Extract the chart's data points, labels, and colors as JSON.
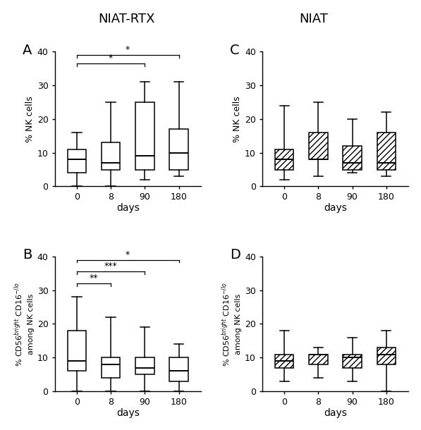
{
  "panel_A": {
    "label": "A",
    "title": "NIAT-RTX",
    "ylabel": "% NK cells",
    "xlabel": "days",
    "xticks": [
      0,
      8,
      90,
      180
    ],
    "ylim": [
      0,
      40
    ],
    "yticks": [
      0,
      10,
      20,
      30,
      40
    ],
    "boxes": [
      {
        "whislo": 0,
        "q1": 4,
        "med": 8,
        "q3": 11,
        "whishi": 16
      },
      {
        "whislo": 0,
        "q1": 5,
        "med": 7,
        "q3": 13,
        "whishi": 25
      },
      {
        "whislo": 2,
        "q1": 5,
        "med": 9,
        "q3": 25,
        "whishi": 31
      },
      {
        "whislo": 3,
        "q1": 5,
        "med": 10,
        "q3": 17,
        "whishi": 31
      }
    ],
    "sig_lines": [
      {
        "x1": 0,
        "x2": 2,
        "y": 36.5,
        "label": "*"
      },
      {
        "x1": 0,
        "x2": 3,
        "y": 39,
        "label": "*"
      }
    ],
    "hatched": false
  },
  "panel_B": {
    "label": "B",
    "title": "",
    "ylabel_line1": "% CD56",
    "ylabel_line2": "among NK cells",
    "xlabel": "days",
    "xticks": [
      0,
      8,
      90,
      180
    ],
    "ylim": [
      0,
      40
    ],
    "yticks": [
      0,
      10,
      20,
      30,
      40
    ],
    "boxes": [
      {
        "whislo": 0,
        "q1": 6,
        "med": 9,
        "q3": 18,
        "whishi": 28
      },
      {
        "whislo": 0,
        "q1": 4,
        "med": 8,
        "q3": 10,
        "whishi": 22
      },
      {
        "whislo": 0,
        "q1": 5,
        "med": 7,
        "q3": 10,
        "whishi": 19
      },
      {
        "whislo": 0,
        "q1": 3,
        "med": 6,
        "q3": 10,
        "whishi": 14
      }
    ],
    "sig_lines": [
      {
        "x1": 0,
        "x2": 1,
        "y": 32,
        "label": "**"
      },
      {
        "x1": 0,
        "x2": 2,
        "y": 35.5,
        "label": "***"
      },
      {
        "x1": 0,
        "x2": 3,
        "y": 39,
        "label": "*"
      }
    ],
    "hatched": false
  },
  "panel_C": {
    "label": "C",
    "title": "NIAT",
    "ylabel": "% NK cells",
    "xlabel": "days",
    "xticks": [
      0,
      8,
      90,
      180
    ],
    "ylim": [
      0,
      40
    ],
    "yticks": [
      0,
      10,
      20,
      30,
      40
    ],
    "boxes": [
      {
        "whislo": 2,
        "q1": 5,
        "med": 8,
        "q3": 11,
        "whishi": 24
      },
      {
        "whislo": 3,
        "q1": 8,
        "med": 8,
        "q3": 16,
        "whishi": 25
      },
      {
        "whislo": 4,
        "q1": 5,
        "med": 7,
        "q3": 12,
        "whishi": 20
      },
      {
        "whislo": 3,
        "q1": 5,
        "med": 7,
        "q3": 16,
        "whishi": 22
      }
    ],
    "sig_lines": [],
    "hatched": true
  },
  "panel_D": {
    "label": "D",
    "title": "",
    "ylabel_line1": "% CD56",
    "ylabel_line2": "among NK cells",
    "xlabel": "days",
    "xticks": [
      0,
      8,
      90,
      180
    ],
    "ylim": [
      0,
      40
    ],
    "yticks": [
      0,
      10,
      20,
      30,
      40
    ],
    "boxes": [
      {
        "whislo": 3,
        "q1": 7,
        "med": 9,
        "q3": 11,
        "whishi": 18
      },
      {
        "whislo": 4,
        "q1": 8,
        "med": 11,
        "q3": 11,
        "whishi": 13
      },
      {
        "whislo": 3,
        "q1": 7,
        "med": 10,
        "q3": 11,
        "whishi": 16
      },
      {
        "whislo": 0,
        "q1": 8,
        "med": 11,
        "q3": 13,
        "whishi": 18
      }
    ],
    "sig_lines": [],
    "hatched": true
  },
  "box_width": 0.55,
  "linewidth": 1.1,
  "hatch_pattern": "////",
  "bg_color": "#ffffff",
  "box_color": "#ffffff"
}
